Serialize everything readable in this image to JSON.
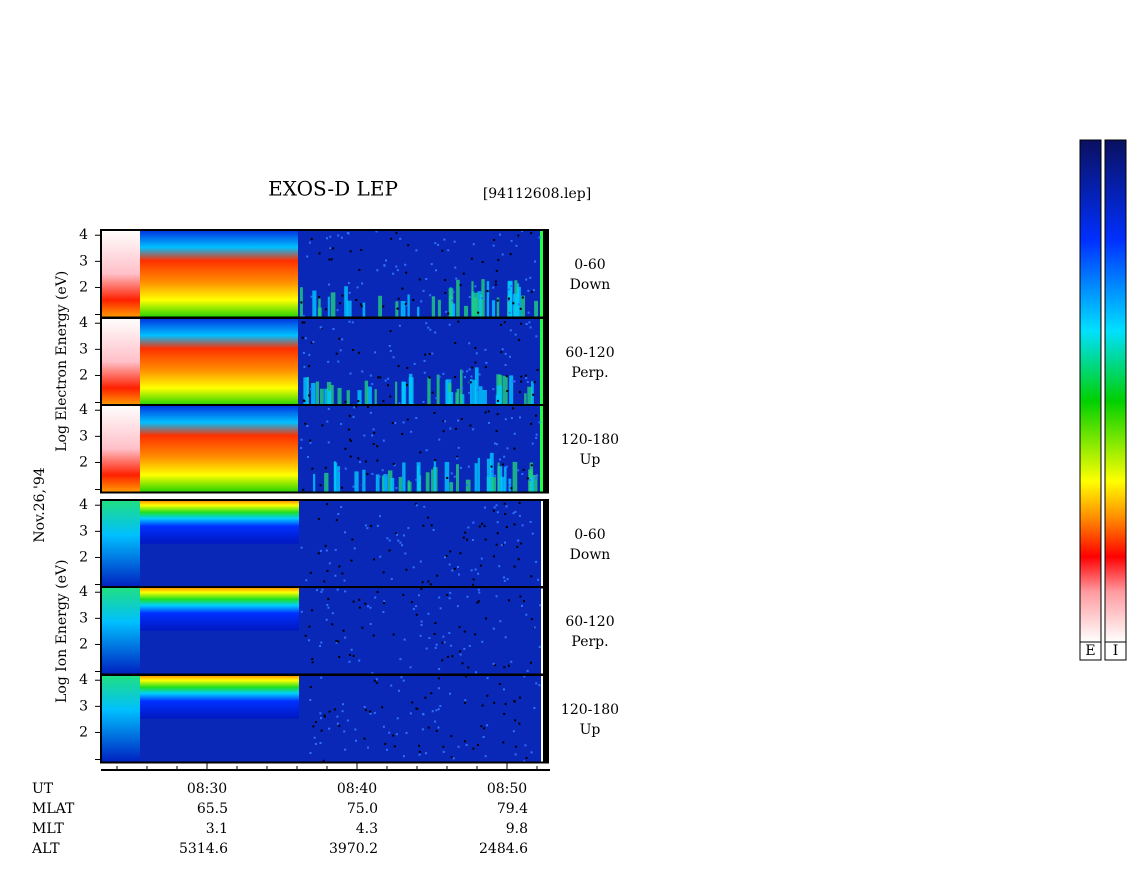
{
  "header": {
    "title": "EXOS-D LEP",
    "file": "[94112608.lep]"
  },
  "date": "Nov.26,'94",
  "groups": [
    {
      "label": "Log Electron Energy (eV)",
      "panels": [
        {
          "angle": "0-60",
          "direction": "Down",
          "yticks": [
            2,
            3,
            4
          ]
        },
        {
          "angle": "60-120",
          "direction": "Perp.",
          "yticks": [
            2,
            3,
            4
          ]
        },
        {
          "angle": "120-180",
          "direction": "Up",
          "yticks": [
            2,
            3,
            4
          ]
        }
      ]
    },
    {
      "label": "Log Ion Energy (eV)",
      "panels": [
        {
          "angle": "0-60",
          "direction": "Down",
          "yticks": [
            2,
            3,
            4
          ]
        },
        {
          "angle": "60-120",
          "direction": "Perp.",
          "yticks": [
            2,
            3,
            4
          ]
        },
        {
          "angle": "120-180",
          "direction": "Up",
          "yticks": [
            2,
            3,
            4
          ]
        }
      ]
    }
  ],
  "x_axis": {
    "ticks": [
      "08:30",
      "08:40",
      "08:50"
    ]
  },
  "orbit": {
    "labels": [
      "UT",
      "MLAT",
      "MLT",
      "ALT"
    ],
    "rows": [
      [
        "65.5",
        "75.0",
        "79.4"
      ],
      [
        "3.1",
        "4.3",
        "9.8"
      ],
      [
        "5314.6",
        "3970.2",
        "2484.6"
      ]
    ]
  },
  "colorbars": [
    "E",
    "I"
  ]
}
